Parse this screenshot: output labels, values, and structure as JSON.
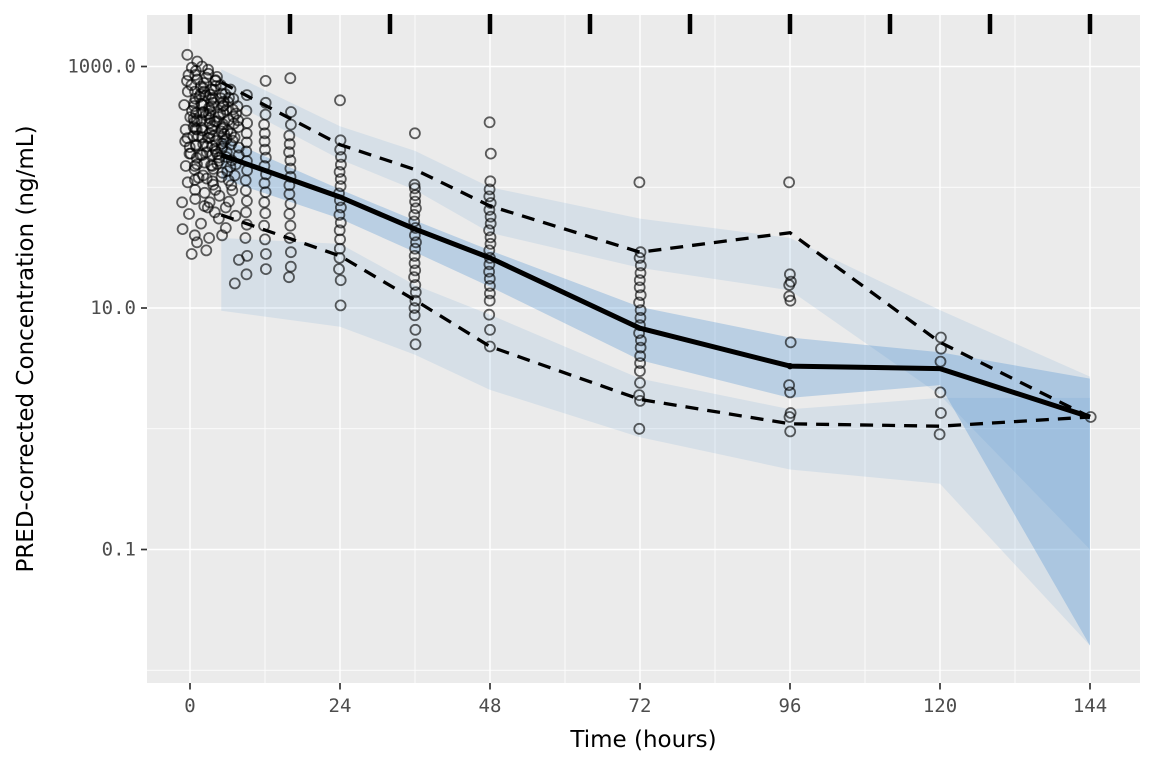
{
  "chart_data": {
    "type": "scatter",
    "subtype": "visual-predictive-check",
    "title": "",
    "xlabel": "Time (hours)",
    "ylabel": "PRED-corrected Concentration (ng/mL)",
    "y_scale": "log10",
    "grid": true,
    "legend_position": "none",
    "xlim": [
      -6.9,
      152
    ],
    "x_ticks": [
      0,
      24,
      48,
      72,
      96,
      120,
      144
    ],
    "x_minor_ticks": [
      12,
      36,
      60,
      84,
      108,
      132
    ],
    "y_tick_labels": [
      "1000.0",
      "10.0",
      "0.1"
    ],
    "y_tick_values": [
      1000,
      10,
      0.1
    ],
    "y_minor_values": [
      100,
      1,
      0.01
    ],
    "rug_times": [
      0,
      16,
      32,
      48,
      64,
      80,
      96,
      112,
      128,
      144
    ],
    "bin_hours": [
      5,
      24,
      36,
      48,
      72,
      96,
      120,
      144
    ],
    "percentile_lines": {
      "upper_dashed": [
        740,
        225,
        140,
        70,
        29,
        42,
        5.2,
        1.25
      ],
      "median_solid": [
        185,
        83,
        45,
        26,
        6.8,
        3.3,
        3.15,
        1.25
      ],
      "lower_dashed": [
        59,
        27,
        11.6,
        4.8,
        1.75,
        1.1,
        1.05,
        1.25
      ]
    },
    "ribbons": {
      "upper": {
        "hi": [
          950,
          320,
          200,
          100,
          55,
          38,
          9.6,
          2.7
        ],
        "lo": [
          560,
          170,
          95,
          42,
          21.5,
          14,
          1.9,
          0.1
        ]
      },
      "middle": {
        "hi": [
          260,
          96,
          53,
          30,
          10.2,
          5.7,
          4.3,
          2.6
        ],
        "lo": [
          118,
          55,
          29,
          15,
          3.7,
          1.8,
          2.3,
          0.016
        ]
      },
      "lower": {
        "hi": [
          38,
          34,
          15.5,
          8.8,
          2.6,
          1.45,
          1.8,
          1.8
        ],
        "lo": [
          9.5,
          7,
          4.1,
          2.1,
          0.85,
          0.46,
          0.35,
          0.016
        ]
      }
    },
    "observed_points": [
      {
        "t": -0.5,
        "c": [
          850,
          620,
          480,
          380,
          300,
          240,
          190,
          150,
          110,
          75,
          45
        ]
      },
      {
        "t": 0.3,
        "c": [
          1250,
          980,
          760,
          620,
          540,
          470,
          410,
          350,
          300,
          255,
          215,
          175,
          140,
          95,
          60,
          28
        ]
      },
      {
        "t": 0.9,
        "c": [
          1100,
          850,
          700,
          590,
          500,
          430,
          370,
          315,
          265,
          225,
          190,
          155,
          120,
          80,
          40
        ]
      },
      {
        "t": 1.5,
        "c": [
          920,
          780,
          660,
          560,
          480,
          415,
          355,
          305,
          260,
          220,
          185,
          150,
          115,
          70,
          35
        ]
      },
      {
        "t": 2.1,
        "c": [
          1000,
          810,
          680,
          575,
          490,
          420,
          360,
          310,
          265,
          228,
          195,
          160,
          125,
          90,
          50
        ]
      },
      {
        "t": 2.7,
        "c": [
          870,
          730,
          620,
          530,
          455,
          395,
          340,
          295,
          255,
          218,
          185,
          152,
          118,
          75,
          38
        ]
      },
      {
        "t": 3.3,
        "c": [
          940,
          770,
          645,
          550,
          470,
          405,
          350,
          300,
          258,
          220,
          186,
          150,
          112,
          68,
          30
        ]
      },
      {
        "t": 3.9,
        "c": [
          820,
          690,
          585,
          500,
          430,
          372,
          322,
          280,
          242,
          208,
          176,
          142,
          105,
          62
        ]
      },
      {
        "t": 4.5,
        "c": [
          760,
          640,
          545,
          468,
          405,
          352,
          306,
          266,
          230,
          198,
          166,
          132,
          95,
          55
        ]
      },
      {
        "t": 5.1,
        "c": [
          700,
          595,
          510,
          440,
          382,
          333,
          290,
          252,
          218,
          187,
          156,
          122,
          85,
          46
        ]
      },
      {
        "t": 5.7,
        "c": [
          645,
          552,
          476,
          413,
          360,
          315,
          275,
          240,
          208,
          178,
          147,
          114,
          76,
          40
        ]
      },
      {
        "t": 6.4,
        "c": [
          590,
          508,
          440,
          384,
          336,
          295,
          258,
          226,
          196,
          167,
          136,
          104,
          68
        ]
      },
      {
        "t": 7.2,
        "c": [
          540,
          468,
          408,
          358,
          315,
          277,
          243,
          213,
          184,
          155,
          125,
          94,
          58,
          25,
          16
        ]
      },
      {
        "t": 9,
        "c": [
          580,
          430,
          340,
          280,
          235,
          198,
          165,
          138,
          114,
          94,
          77,
          62,
          49,
          38,
          27,
          19
        ]
      },
      {
        "t": 12,
        "c": [
          760,
          500,
          400,
          330,
          280,
          240,
          205,
          176,
          150,
          128,
          108,
          91,
          75,
          61,
          48,
          37,
          28,
          21
        ]
      },
      {
        "t": 16,
        "c": [
          800,
          420,
          330,
          268,
          228,
          195,
          167,
          143,
          122,
          104,
          88,
          73,
          60,
          48,
          38,
          29,
          22,
          18
        ]
      },
      {
        "t": 24,
        "c": [
          525,
          245,
          205,
          178,
          154,
          134,
          117,
          102,
          89,
          78,
          68,
          59,
          51,
          44,
          37,
          31,
          26,
          21,
          17,
          10.5
        ]
      },
      {
        "t": 36,
        "c": [
          280,
          105,
          98,
          86,
          76,
          67,
          59,
          52,
          46,
          40,
          35,
          31,
          27,
          23.5,
          20.5,
          18,
          15.5,
          13.5,
          11.5,
          10,
          8.7,
          6.6,
          5.0
        ]
      },
      {
        "t": 48,
        "c": [
          345,
          190,
          112,
          96,
          84,
          74,
          65,
          57,
          50,
          44,
          38.5,
          34,
          30,
          26,
          23,
          20,
          17.5,
          15.2,
          13.2,
          11.5,
          8.8,
          6.6,
          4.8
        ]
      },
      {
        "t": 72,
        "c": [
          110,
          29,
          26,
          22.5,
          19.5,
          17,
          14.8,
          12.8,
          11.1,
          9.6,
          8.3,
          7.2,
          6.2,
          5.4,
          4.7,
          4.0,
          3.5,
          3.0,
          2.4,
          1.9,
          1.7,
          1.0
        ]
      },
      {
        "t": 96,
        "c": [
          110,
          19,
          16.5,
          15.5,
          12.5,
          11.5,
          5.2,
          2.3,
          2.0,
          1.35,
          1.25,
          0.95
        ]
      },
      {
        "t": 120,
        "c": [
          5.7,
          4.6,
          3.6,
          2.0,
          1.35,
          0.9
        ]
      },
      {
        "t": 144,
        "c": [
          1.25
        ]
      }
    ],
    "colors": {
      "panel_bg": "#ebebeb",
      "grid": "#ffffff",
      "ribbon_fill": "#4a90cf",
      "line": "#000000",
      "point_stroke": "#000000",
      "tick_label": "#4d4d4d",
      "axis_tick": "#333333"
    }
  }
}
